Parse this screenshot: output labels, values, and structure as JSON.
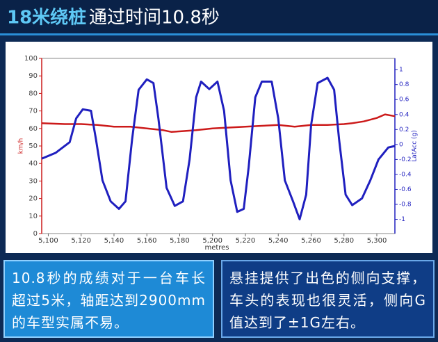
{
  "header": {
    "highlight": "18米绕桩",
    "title": "通过时间10.8秒"
  },
  "chart_data": {
    "type": "line",
    "xlabel": "metres",
    "ylabel": "km/h",
    "y2label": "LatAcc (g)",
    "xlim": [
      5096,
      5311
    ],
    "ylim": [
      0,
      100
    ],
    "y2lim": [
      -1.19,
      1.15
    ],
    "xticks": [
      {
        "value": 5100,
        "label": "5,100"
      },
      {
        "value": 5120,
        "label": "5,120"
      },
      {
        "value": 5140,
        "label": "5,140"
      },
      {
        "value": 5160,
        "label": "5,160"
      },
      {
        "value": 5180,
        "label": "5,180"
      },
      {
        "value": 5200,
        "label": "5,200"
      },
      {
        "value": 5220,
        "label": "5,220"
      },
      {
        "value": 5240,
        "label": "5,240"
      },
      {
        "value": 5260,
        "label": "5,260"
      },
      {
        "value": 5280,
        "label": "5,280"
      },
      {
        "value": 5300,
        "label": "5,300"
      }
    ],
    "yticks": [
      0,
      10,
      20,
      30,
      40,
      50,
      60,
      70,
      80,
      90,
      100
    ],
    "y2ticks": [
      1,
      0.8,
      0.6,
      0.4,
      0.2,
      0,
      -0.2,
      -0.4,
      -0.6,
      -0.8,
      -1
    ],
    "grid": false,
    "series": [
      {
        "color": "#cc1a1a",
        "x": [
          5096,
          5110,
          5120,
          5130,
          5140,
          5150,
          5160,
          5170,
          5175,
          5182,
          5190,
          5200,
          5210,
          5220,
          5230,
          5240,
          5250,
          5260,
          5270,
          5280,
          5285,
          5292,
          5300,
          5305,
          5311
        ],
        "values": [
          63,
          62.5,
          62.5,
          62,
          61,
          61,
          60,
          59,
          58,
          58.5,
          59,
          60,
          60.5,
          61,
          61.5,
          62,
          61,
          62,
          62,
          62.5,
          63,
          64,
          66,
          68,
          67
        ]
      },
      {
        "color": "#1f1fbf",
        "axis": "y2",
        "x": [
          5096,
          5104.6,
          5113,
          5117,
          5121,
          5126,
          5129,
          5133,
          5138,
          5143,
          5147,
          5151,
          5155,
          5160,
          5164,
          5167,
          5172,
          5177,
          5182,
          5186,
          5190,
          5193,
          5198,
          5203,
          5207,
          5211,
          5215,
          5219,
          5222,
          5226,
          5230,
          5236,
          5240,
          5244,
          5249,
          5253,
          5257,
          5260,
          5264,
          5270,
          5274,
          5277,
          5281,
          5285,
          5291,
          5296,
          5301,
          5307,
          5311
        ],
        "values": [
          -0.19,
          -0.11,
          0.03,
          0.35,
          0.47,
          0.45,
          0.07,
          -0.48,
          -0.76,
          -0.86,
          -0.76,
          0.07,
          0.73,
          0.87,
          0.82,
          0.35,
          -0.58,
          -0.82,
          -0.76,
          -0.2,
          0.63,
          0.84,
          0.74,
          0.84,
          0.45,
          -0.48,
          -0.9,
          -0.86,
          -0.3,
          0.63,
          0.84,
          0.84,
          0.35,
          -0.48,
          -0.76,
          -1.0,
          -0.67,
          0.26,
          0.82,
          0.89,
          0.73,
          0.07,
          -0.67,
          -0.81,
          -0.72,
          -0.48,
          -0.2,
          -0.04,
          -0.02
        ]
      }
    ]
  },
  "captions": [
    "10.8秒的成绩对于一台车长超过5米，轴距达到2900mm的车型实属不易。",
    "悬挂提供了出色的侧向支撑，车头的表现也很灵活，侧向G值达到了±1G左右。"
  ]
}
